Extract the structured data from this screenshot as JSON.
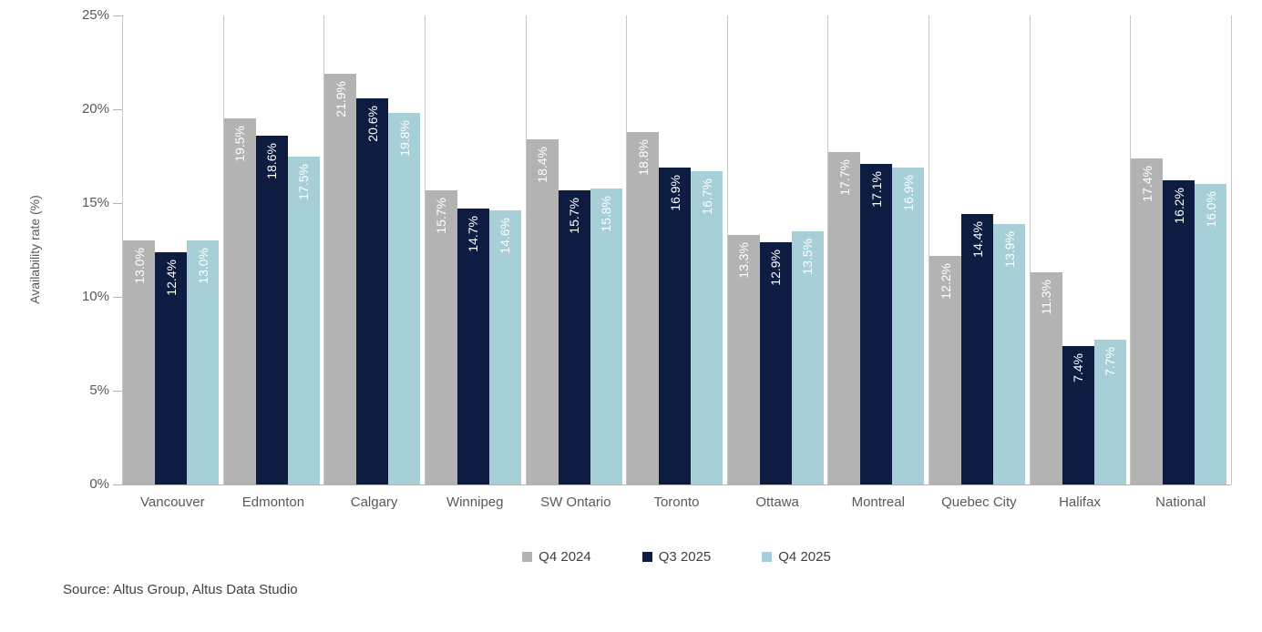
{
  "chart_data": {
    "type": "bar",
    "categories": [
      "Vancouver",
      "Edmonton",
      "Calgary",
      "Winnipeg",
      "SW Ontario",
      "Toronto",
      "Ottawa",
      "Montreal",
      "Quebec City",
      "Halifax",
      "National"
    ],
    "series": [
      {
        "name": "Q4 2024",
        "color": "#b3b3b3",
        "values": [
          13.0,
          19.5,
          21.9,
          15.7,
          18.4,
          18.8,
          13.3,
          17.7,
          12.2,
          11.3,
          17.4
        ]
      },
      {
        "name": "Q3 2025",
        "color": "#0e1c42",
        "values": [
          12.4,
          18.6,
          20.6,
          14.7,
          15.7,
          16.9,
          12.9,
          17.1,
          14.4,
          7.4,
          16.2
        ]
      },
      {
        "name": "Q4 2025",
        "color": "#a6cfd7",
        "values": [
          13.0,
          17.5,
          19.8,
          14.6,
          15.8,
          16.7,
          13.5,
          16.9,
          13.9,
          7.7,
          16.0
        ]
      }
    ],
    "title": "",
    "xlabel": "",
    "ylabel": "Availability rate (%)",
    "ylim": [
      0,
      25
    ],
    "yticks": [
      0,
      5,
      10,
      15,
      20,
      25
    ],
    "ytick_labels": [
      "0%",
      "5%",
      "10%",
      "15%",
      "20%",
      "25%"
    ],
    "bar_label_format": "one_decimal_percent",
    "bar_label_color": "#ffffff",
    "grid": "vertical category separators only, no horizontal gridlines",
    "legend_position": "bottom-center"
  },
  "source_note": "Source: Altus Group, Altus Data Studio",
  "colors": {
    "axis_text": "#595959",
    "legend_text": "#404040",
    "gridline": "#c6c6c6",
    "baseline": "#b3b3b3"
  }
}
